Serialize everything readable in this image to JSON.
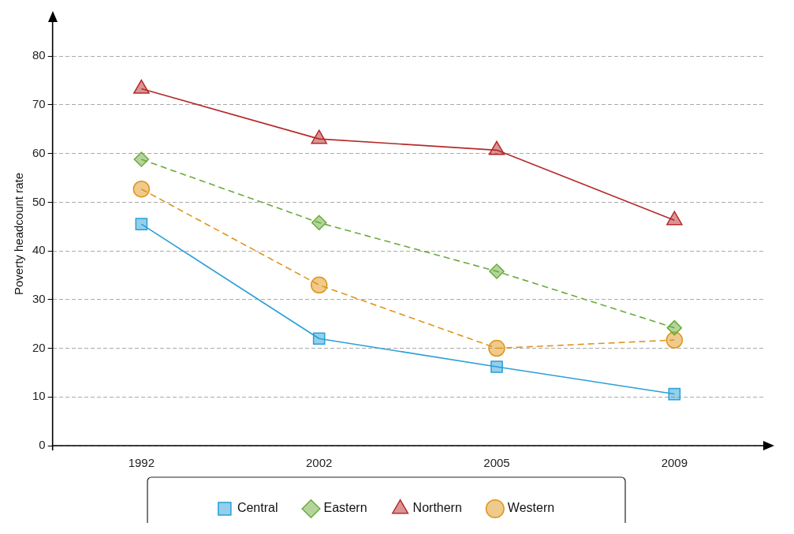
{
  "chart_data": {
    "type": "line",
    "ylabel": "Poverty headcount rate",
    "categories": [
      "1992",
      "2002",
      "2005",
      "2009"
    ],
    "series": [
      {
        "name": "Central",
        "color": "#2a9fd8",
        "marker": "square",
        "line_style": "solid",
        "values": [
          45.5,
          22,
          16.2,
          10.6
        ]
      },
      {
        "name": "Eastern",
        "color": "#6aaa3a",
        "marker": "diamond",
        "line_style": "dashed",
        "values": [
          58.8,
          45.8,
          35.8,
          24.2
        ]
      },
      {
        "name": "Northern",
        "color": "#b52a2a",
        "marker": "triangle",
        "line_style": "solid",
        "values": [
          73.3,
          63,
          60.7,
          46.3
        ]
      },
      {
        "name": "Western",
        "color": "#e0951c",
        "marker": "circle",
        "line_style": "dashed",
        "values": [
          52.7,
          33,
          20,
          21.7
        ]
      }
    ],
    "ylim": [
      0,
      87
    ],
    "yticks": [
      0,
      10,
      20,
      30,
      40,
      50,
      60,
      70,
      80
    ],
    "grid": "y",
    "legend": "bottom"
  }
}
